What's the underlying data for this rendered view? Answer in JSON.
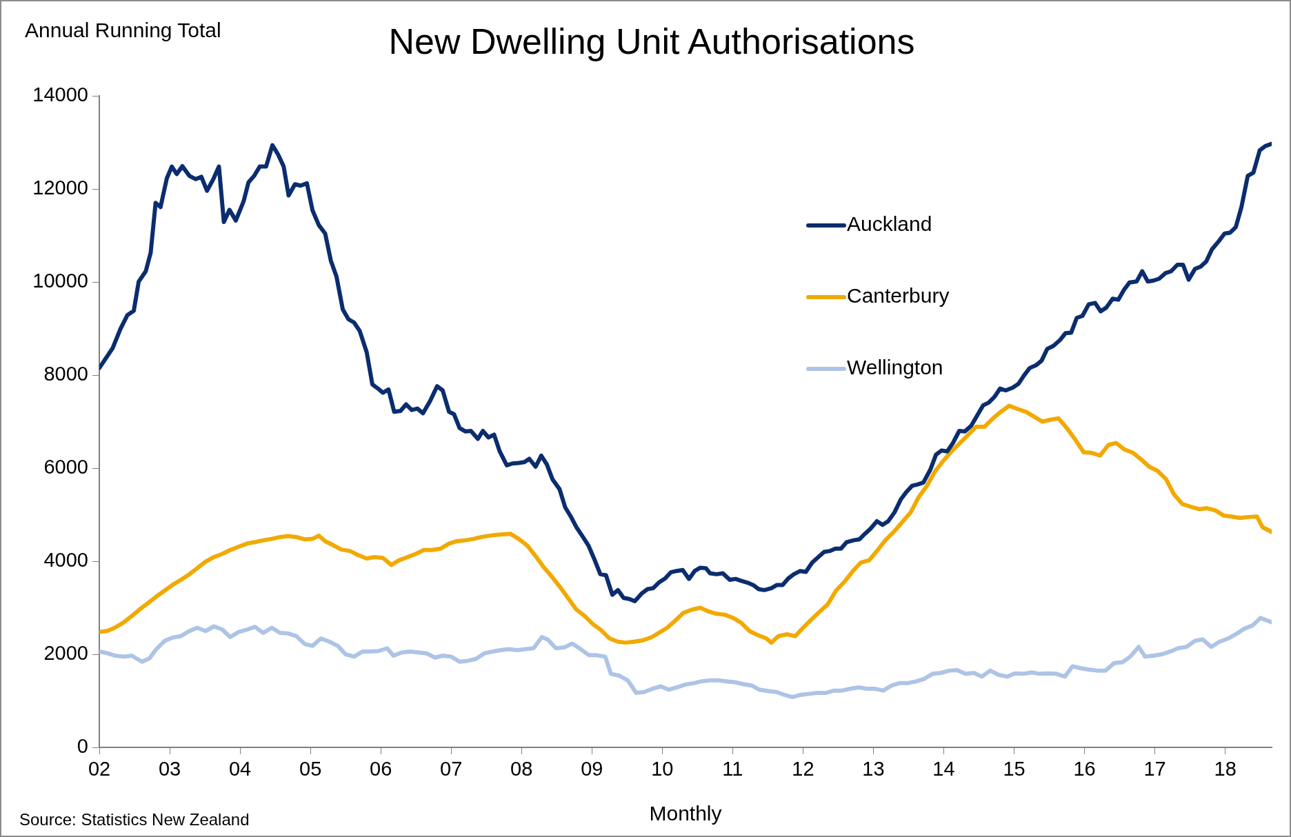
{
  "chart_data": {
    "type": "line",
    "title": "New Dwelling Unit Authorisations",
    "ylabel": "Annual Running Total",
    "xlabel": "Monthly",
    "annotations": [
      "Source: Statistics New Zealand"
    ],
    "xlim": [
      2002,
      2018.66
    ],
    "xticks": [
      {
        "value": 2002,
        "label": "02"
      },
      {
        "value": 2003,
        "label": "03"
      },
      {
        "value": 2004,
        "label": "04"
      },
      {
        "value": 2005,
        "label": "05"
      },
      {
        "value": 2006,
        "label": "06"
      },
      {
        "value": 2007,
        "label": "07"
      },
      {
        "value": 2008,
        "label": "08"
      },
      {
        "value": 2009,
        "label": "09"
      },
      {
        "value": 2010,
        "label": "10"
      },
      {
        "value": 2011,
        "label": "11"
      },
      {
        "value": 2012,
        "label": "12"
      },
      {
        "value": 2013,
        "label": "13"
      },
      {
        "value": 2014,
        "label": "14"
      },
      {
        "value": 2015,
        "label": "15"
      },
      {
        "value": 2016,
        "label": "16"
      },
      {
        "value": 2017,
        "label": "17"
      },
      {
        "value": 2018,
        "label": "18"
      }
    ],
    "ylim": [
      0,
      14000
    ],
    "yticks": [
      0,
      2000,
      4000,
      6000,
      8000,
      10000,
      12000,
      14000
    ],
    "grid": false,
    "legend": "right",
    "series": [
      {
        "name": "Auckland",
        "color": "#0b2d6f",
        "x": [
          2002.0,
          2002.19,
          2002.3,
          2002.4,
          2002.49,
          2002.56,
          2002.66,
          2002.73,
          2002.8,
          2002.87,
          2002.96,
          2003.03,
          2003.1,
          2003.18,
          2003.28,
          2003.37,
          2003.45,
          2003.53,
          2003.62,
          2003.7,
          2003.77,
          2003.85,
          2003.94,
          2004.05,
          2004.12,
          2004.2,
          2004.28,
          2004.37,
          2004.46,
          2004.54,
          2004.62,
          2004.69,
          2004.78,
          2004.86,
          2004.95,
          2005.03,
          2005.12,
          2005.21,
          2005.29,
          2005.37,
          2005.46,
          2005.54,
          2005.62,
          2005.7,
          2005.8,
          2005.88,
          2005.96,
          2006.03,
          2006.11,
          2006.19,
          2006.28,
          2006.36,
          2006.44,
          2006.52,
          2006.6,
          2006.7,
          2006.8,
          2006.88,
          2006.97,
          2007.04,
          2007.12,
          2007.2,
          2007.28,
          2007.38,
          2007.45,
          2007.53,
          2007.61,
          2007.69,
          2007.79,
          2007.87,
          2007.96,
          2008.04,
          2008.11,
          2008.2,
          2008.28,
          2008.36,
          2008.44,
          2008.54,
          2008.62,
          2008.7,
          2008.78,
          2008.86,
          2008.95,
          2009.03,
          2009.12,
          2009.2,
          2009.29,
          2009.37,
          2009.45,
          2009.53,
          2009.61,
          2009.71,
          2009.79,
          2009.87,
          2009.95,
          2010.04,
          2010.12,
          2010.2,
          2010.29,
          2010.38,
          2010.46,
          2010.54,
          2010.62,
          2010.68,
          2010.77,
          2010.86,
          2010.96,
          2011.04,
          2011.12,
          2011.21,
          2011.29,
          2011.37,
          2011.45,
          2011.55,
          2011.63,
          2011.71,
          2011.79,
          2011.87,
          2011.96,
          2012.04,
          2012.13,
          2012.21,
          2012.3,
          2012.38,
          2012.46,
          2012.54,
          2012.62,
          2012.72,
          2012.8,
          2012.88,
          2012.96,
          2013.05,
          2013.13,
          2013.21,
          2013.3,
          2013.39,
          2013.47,
          2013.55,
          2013.63,
          2013.71,
          2013.81,
          2013.89,
          2013.97,
          2014.05,
          2014.13,
          2014.22,
          2014.3,
          2014.39,
          2014.47,
          2014.56,
          2014.64,
          2014.72,
          2014.8,
          2014.88,
          2014.98,
          2015.06,
          2015.14,
          2015.22,
          2015.31,
          2015.39,
          2015.47,
          2015.56,
          2015.65,
          2015.73,
          2015.81,
          2015.89,
          2015.97,
          2016.06,
          2016.15,
          2016.23,
          2016.31,
          2016.4,
          2016.48,
          2016.56,
          2016.64,
          2016.74,
          2016.82,
          2016.9,
          2016.98,
          2017.06,
          2017.15,
          2017.23,
          2017.32,
          2017.4,
          2017.48,
          2017.57,
          2017.65,
          2017.73,
          2017.81,
          2017.91,
          2017.99,
          2018.07,
          2018.15,
          2018.23,
          2018.32,
          2018.4,
          2018.49,
          2018.57,
          2018.66
        ],
        "values": [
          8150,
          8580,
          8990,
          9290,
          9380,
          10010,
          10230,
          10630,
          11700,
          11610,
          12230,
          12480,
          12320,
          12490,
          12280,
          12210,
          12260,
          11960,
          12210,
          12480,
          11290,
          11550,
          11320,
          11730,
          12140,
          12280,
          12480,
          12480,
          12940,
          12740,
          12480,
          11860,
          12100,
          12070,
          12120,
          11540,
          11220,
          11040,
          10460,
          10120,
          9410,
          9200,
          9130,
          8950,
          8490,
          7800,
          7710,
          7620,
          7690,
          7210,
          7230,
          7370,
          7250,
          7280,
          7180,
          7440,
          7760,
          7670,
          7210,
          7160,
          6860,
          6790,
          6800,
          6630,
          6800,
          6660,
          6720,
          6360,
          6060,
          6100,
          6110,
          6130,
          6200,
          6030,
          6270,
          6080,
          5760,
          5550,
          5160,
          4960,
          4730,
          4550,
          4340,
          4060,
          3720,
          3700,
          3280,
          3380,
          3210,
          3190,
          3140,
          3310,
          3400,
          3420,
          3540,
          3630,
          3760,
          3790,
          3810,
          3620,
          3790,
          3860,
          3850,
          3740,
          3720,
          3740,
          3600,
          3620,
          3580,
          3540,
          3490,
          3400,
          3380,
          3420,
          3490,
          3490,
          3630,
          3720,
          3790,
          3770,
          3970,
          4080,
          4200,
          4220,
          4270,
          4270,
          4410,
          4450,
          4470,
          4590,
          4700,
          4860,
          4780,
          4860,
          5050,
          5330,
          5490,
          5620,
          5650,
          5690,
          5970,
          6290,
          6380,
          6360,
          6540,
          6800,
          6790,
          6910,
          7120,
          7350,
          7410,
          7530,
          7710,
          7670,
          7730,
          7810,
          7990,
          8150,
          8210,
          8310,
          8560,
          8630,
          8750,
          8900,
          8910,
          9230,
          9270,
          9520,
          9550,
          9370,
          9450,
          9640,
          9620,
          9830,
          9990,
          10010,
          10230,
          10010,
          10030,
          10070,
          10190,
          10230,
          10370,
          10370,
          10050,
          10280,
          10330,
          10440,
          10700,
          10880,
          11040,
          11060,
          11180,
          11610,
          12280,
          12350,
          12830,
          12920,
          12970
        ]
      },
      {
        "name": "Canterbury",
        "color": "#f2a900",
        "x": [
          2002.0,
          2002.11,
          2002.22,
          2002.34,
          2002.46,
          2002.57,
          2002.69,
          2002.81,
          2002.93,
          2003.04,
          2003.16,
          2003.28,
          2003.39,
          2003.51,
          2003.63,
          2003.75,
          2003.86,
          2003.98,
          2004.1,
          2004.21,
          2004.33,
          2004.45,
          2004.57,
          2004.68,
          2004.8,
          2004.92,
          2005.03,
          2005.12,
          2005.21,
          2005.33,
          2005.44,
          2005.56,
          2005.68,
          2005.8,
          2005.91,
          2006.03,
          2006.15,
          2006.26,
          2006.38,
          2006.5,
          2006.61,
          2006.73,
          2006.85,
          2006.97,
          2007.08,
          2007.2,
          2007.32,
          2007.43,
          2007.55,
          2007.67,
          2007.84,
          2007.96,
          2008.08,
          2008.2,
          2008.31,
          2008.43,
          2008.55,
          2008.66,
          2008.78,
          2008.9,
          2009.02,
          2009.13,
          2009.25,
          2009.37,
          2009.48,
          2009.6,
          2009.72,
          2009.84,
          2009.95,
          2010.07,
          2010.19,
          2010.3,
          2010.42,
          2010.54,
          2010.66,
          2010.77,
          2010.89,
          2011.01,
          2011.12,
          2011.24,
          2011.36,
          2011.48,
          2011.55,
          2011.65,
          2011.77,
          2011.89,
          2012.0,
          2012.12,
          2012.24,
          2012.35,
          2012.47,
          2012.59,
          2012.71,
          2012.82,
          2012.94,
          2013.06,
          2013.17,
          2013.29,
          2013.41,
          2013.53,
          2013.64,
          2013.76,
          2013.88,
          2013.99,
          2014.11,
          2014.23,
          2014.35,
          2014.46,
          2014.58,
          2014.7,
          2014.81,
          2014.93,
          2015.05,
          2015.17,
          2015.28,
          2015.4,
          2015.52,
          2015.63,
          2015.75,
          2015.87,
          2015.99,
          2016.1,
          2016.22,
          2016.34,
          2016.45,
          2016.57,
          2016.69,
          2016.81,
          2016.92,
          2017.04,
          2017.16,
          2017.27,
          2017.39,
          2017.51,
          2017.63,
          2017.74,
          2017.86,
          2017.98,
          2018.09,
          2018.21,
          2018.33,
          2018.45,
          2018.53,
          2018.66
        ],
        "values": [
          2480,
          2500,
          2570,
          2680,
          2820,
          2960,
          3100,
          3240,
          3370,
          3490,
          3600,
          3720,
          3850,
          3990,
          4090,
          4160,
          4240,
          4310,
          4380,
          4410,
          4450,
          4480,
          4520,
          4540,
          4520,
          4470,
          4480,
          4550,
          4430,
          4340,
          4250,
          4220,
          4130,
          4060,
          4090,
          4070,
          3920,
          4020,
          4090,
          4160,
          4240,
          4240,
          4270,
          4380,
          4430,
          4450,
          4480,
          4520,
          4550,
          4570,
          4590,
          4480,
          4340,
          4110,
          3880,
          3670,
          3440,
          3210,
          2960,
          2820,
          2640,
          2520,
          2340,
          2270,
          2250,
          2270,
          2300,
          2360,
          2460,
          2570,
          2730,
          2890,
          2960,
          3000,
          2920,
          2870,
          2850,
          2780,
          2680,
          2500,
          2410,
          2340,
          2250,
          2390,
          2430,
          2390,
          2570,
          2750,
          2920,
          3070,
          3370,
          3560,
          3790,
          3970,
          4020,
          4240,
          4450,
          4630,
          4840,
          5050,
          5370,
          5620,
          5940,
          6150,
          6360,
          6540,
          6720,
          6890,
          6890,
          7070,
          7210,
          7340,
          7270,
          7210,
          7110,
          7000,
          7040,
          7070,
          6860,
          6610,
          6340,
          6330,
          6270,
          6500,
          6540,
          6400,
          6330,
          6180,
          6030,
          5940,
          5760,
          5440,
          5230,
          5170,
          5120,
          5140,
          5090,
          4980,
          4960,
          4930,
          4950,
          4960,
          4730,
          4630
        ]
      },
      {
        "name": "Wellington",
        "color": "#aec4e6",
        "x": [
          2002.0,
          2002.12,
          2002.23,
          2002.35,
          2002.46,
          2002.54,
          2002.61,
          2002.71,
          2002.81,
          2002.93,
          2003.04,
          2003.16,
          2003.28,
          2003.39,
          2003.51,
          2003.63,
          2003.75,
          2003.86,
          2003.98,
          2004.1,
          2004.21,
          2004.33,
          2004.45,
          2004.57,
          2004.68,
          2004.8,
          2004.92,
          2005.03,
          2005.15,
          2005.27,
          2005.39,
          2005.5,
          2005.62,
          2005.74,
          2005.85,
          2005.97,
          2006.09,
          2006.18,
          2006.3,
          2006.42,
          2006.53,
          2006.65,
          2006.77,
          2006.88,
          2007.0,
          2007.12,
          2007.24,
          2007.35,
          2007.47,
          2007.59,
          2007.7,
          2007.82,
          2007.94,
          2008.06,
          2008.17,
          2008.29,
          2008.37,
          2008.49,
          2008.61,
          2008.72,
          2008.84,
          2008.96,
          2009.07,
          2009.19,
          2009.27,
          2009.39,
          2009.51,
          2009.63,
          2009.74,
          2009.86,
          2009.98,
          2010.09,
          2010.21,
          2010.33,
          2010.45,
          2010.56,
          2010.68,
          2010.8,
          2010.91,
          2011.03,
          2011.15,
          2011.27,
          2011.38,
          2011.5,
          2011.62,
          2011.73,
          2011.85,
          2011.97,
          2012.09,
          2012.2,
          2012.32,
          2012.44,
          2012.55,
          2012.67,
          2012.79,
          2012.91,
          2013.02,
          2013.14,
          2013.26,
          2013.37,
          2013.49,
          2013.61,
          2013.72,
          2013.84,
          2013.96,
          2014.08,
          2014.19,
          2014.31,
          2014.43,
          2014.54,
          2014.66,
          2014.78,
          2014.9,
          2015.01,
          2015.13,
          2015.25,
          2015.36,
          2015.48,
          2015.6,
          2015.72,
          2015.83,
          2015.95,
          2016.07,
          2016.18,
          2016.3,
          2016.42,
          2016.54,
          2016.65,
          2016.77,
          2016.86,
          2016.98,
          2017.1,
          2017.22,
          2017.33,
          2017.45,
          2017.57,
          2017.68,
          2017.8,
          2017.92,
          2018.04,
          2018.15,
          2018.27,
          2018.39,
          2018.5,
          2018.66
        ],
        "values": [
          2060,
          2020,
          1970,
          1950,
          1970,
          1900,
          1840,
          1910,
          2110,
          2290,
          2360,
          2390,
          2500,
          2570,
          2500,
          2600,
          2530,
          2370,
          2480,
          2530,
          2590,
          2460,
          2570,
          2460,
          2450,
          2390,
          2220,
          2180,
          2340,
          2270,
          2180,
          2000,
          1950,
          2060,
          2060,
          2070,
          2130,
          1970,
          2040,
          2060,
          2040,
          2020,
          1930,
          1970,
          1950,
          1840,
          1860,
          1900,
          2020,
          2060,
          2090,
          2110,
          2090,
          2110,
          2130,
          2370,
          2320,
          2130,
          2150,
          2230,
          2110,
          1980,
          1980,
          1950,
          1580,
          1540,
          1440,
          1170,
          1190,
          1260,
          1310,
          1240,
          1290,
          1350,
          1380,
          1420,
          1440,
          1440,
          1420,
          1400,
          1360,
          1330,
          1240,
          1210,
          1190,
          1130,
          1080,
          1130,
          1150,
          1170,
          1170,
          1220,
          1220,
          1260,
          1290,
          1260,
          1260,
          1220,
          1330,
          1380,
          1380,
          1420,
          1470,
          1580,
          1600,
          1650,
          1660,
          1580,
          1600,
          1520,
          1650,
          1560,
          1520,
          1590,
          1580,
          1610,
          1580,
          1590,
          1580,
          1520,
          1740,
          1700,
          1670,
          1650,
          1650,
          1810,
          1830,
          1950,
          2160,
          1950,
          1970,
          2000,
          2060,
          2130,
          2160,
          2290,
          2320,
          2160,
          2270,
          2340,
          2430,
          2550,
          2620,
          2780,
          2690
        ]
      }
    ]
  }
}
